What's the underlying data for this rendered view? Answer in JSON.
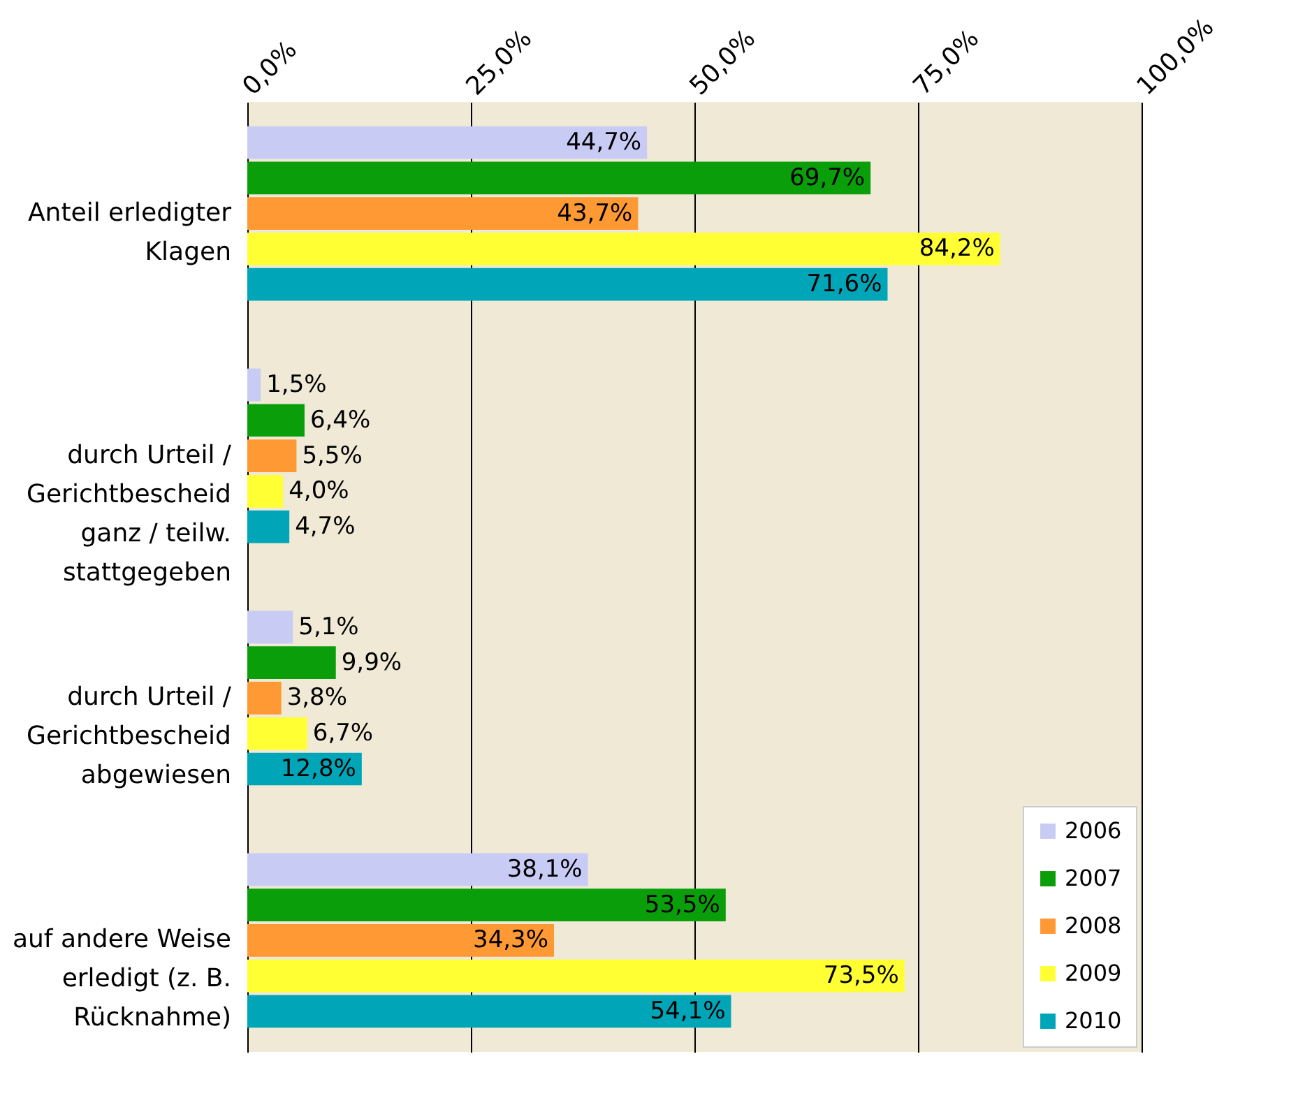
{
  "chart_data": {
    "type": "bar",
    "orientation": "horizontal",
    "categories": [
      "Anteil erledigter Klagen",
      "durch Urteil / Gerichtbescheid ganz / teilw. stattgegeben",
      "durch Urteil / Gerichtbescheid abgewiesen",
      "auf andere Weise erledigt (z. B. Rücknahme)"
    ],
    "series": [
      {
        "name": "2006",
        "color": "#c8ccf4",
        "values": [
          44.7,
          1.5,
          5.1,
          38.1
        ],
        "value_labels": [
          "44,7%",
          "1,5%",
          "5,1%",
          "38,1%"
        ]
      },
      {
        "name": "2007",
        "color": "#0a9e0a",
        "values": [
          69.7,
          6.4,
          9.9,
          53.5
        ],
        "value_labels": [
          "69,7%",
          "6,4%",
          "9,9%",
          "53,5%"
        ]
      },
      {
        "name": "2008",
        "color": "#ff9933",
        "values": [
          43.7,
          5.5,
          3.8,
          34.3
        ],
        "value_labels": [
          "43,7%",
          "5,5%",
          "3,8%",
          "34,3%"
        ]
      },
      {
        "name": "2009",
        "color": "#ffff33",
        "values": [
          84.2,
          4.0,
          6.7,
          73.5
        ],
        "value_labels": [
          "84,2%",
          "4,0%",
          "6,7%",
          "73,5%"
        ]
      },
      {
        "name": "2010",
        "color": "#00a6b8",
        "values": [
          71.6,
          4.7,
          12.8,
          54.1
        ],
        "value_labels": [
          "71,6%",
          "4,7%",
          "12,8%",
          "54,1%"
        ]
      }
    ],
    "xlim": [
      0,
      100
    ],
    "xticks": [
      {
        "value": 0,
        "label": "0,0%"
      },
      {
        "value": 25,
        "label": "25,0%"
      },
      {
        "value": 50,
        "label": "50,0%"
      },
      {
        "value": 75,
        "label": "75,0%"
      },
      {
        "value": 100,
        "label": "100,0%"
      }
    ],
    "grid": "x",
    "legend": "bottom right"
  }
}
